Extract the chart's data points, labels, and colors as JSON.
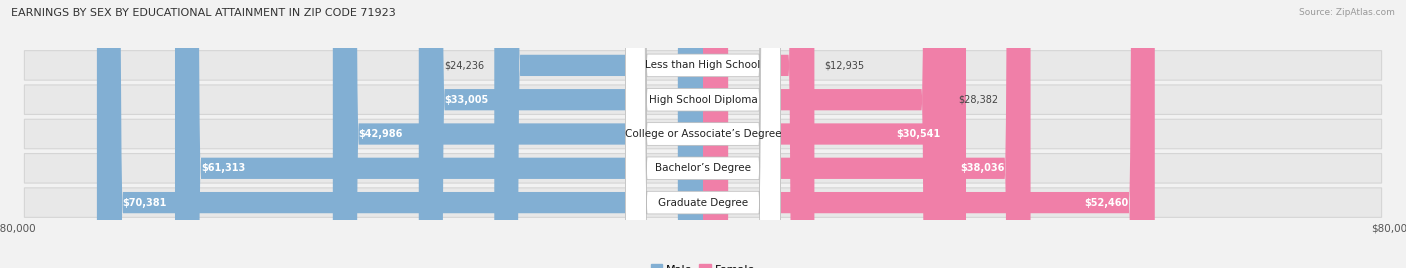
{
  "title": "EARNINGS BY SEX BY EDUCATIONAL ATTAINMENT IN ZIP CODE 71923",
  "source": "Source: ZipAtlas.com",
  "categories": [
    "Less than High School",
    "High School Diploma",
    "College or Associate’s Degree",
    "Bachelor’s Degree",
    "Graduate Degree"
  ],
  "male_values": [
    24236,
    33005,
    42986,
    61313,
    70381
  ],
  "female_values": [
    12935,
    28382,
    30541,
    38036,
    52460
  ],
  "male_color": "#82afd3",
  "female_color": "#f07fa8",
  "max_value": 80000,
  "background_color": "#f2f2f2",
  "row_bg_color": "#e6e6e6",
  "label_box_color": "#ffffff"
}
